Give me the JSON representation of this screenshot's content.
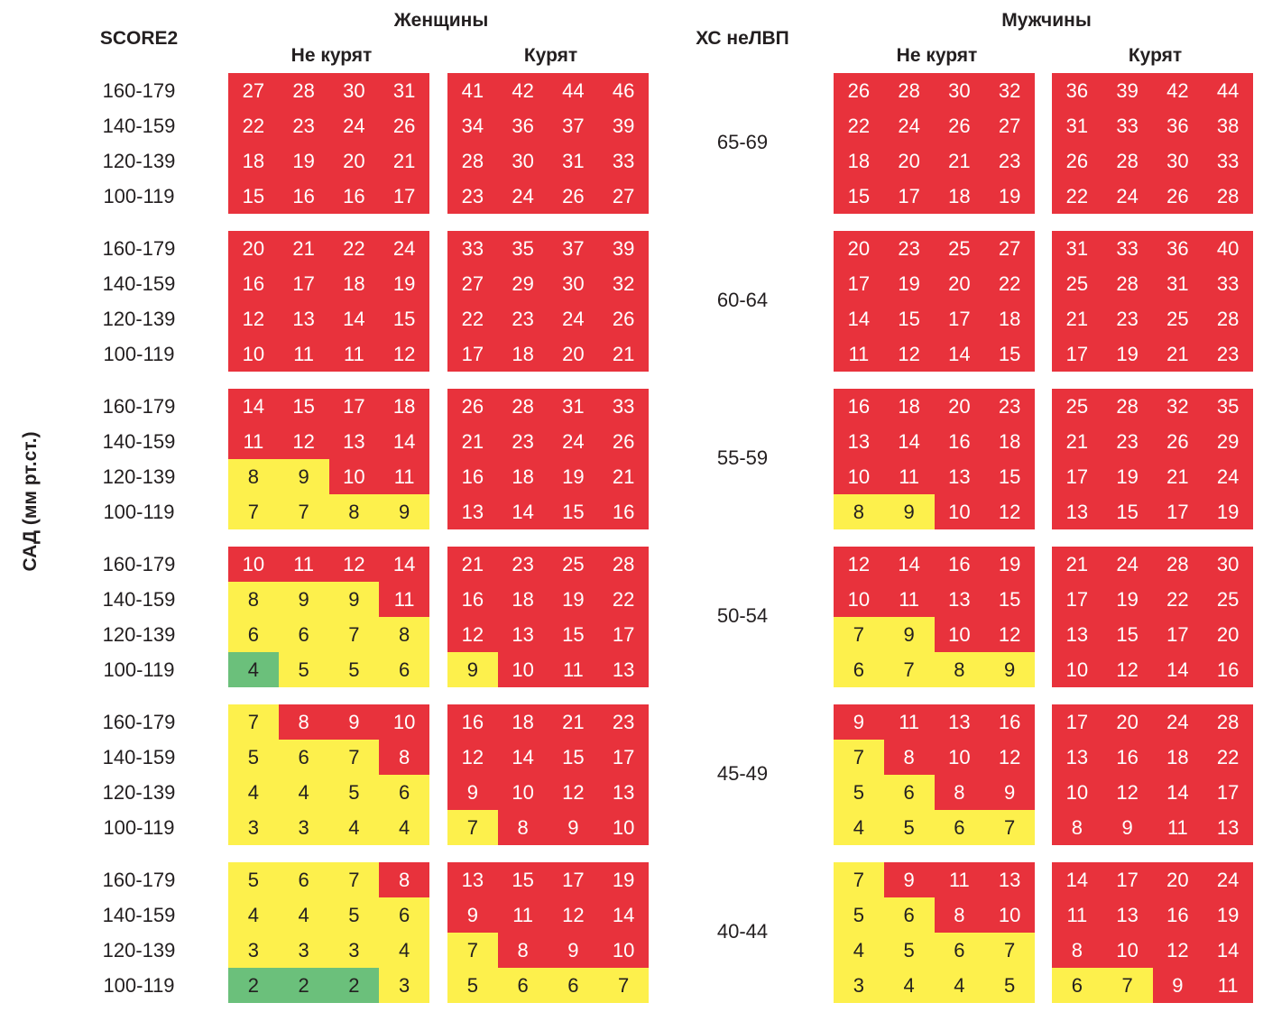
{
  "chart_data": {
    "type": "heatmap",
    "title": "SCORE2",
    "ylabel": "САД (мм рт.ст.)",
    "xlabel": "ХС неЛВП",
    "sex_labels": {
      "women": "Женщины",
      "men": "Мужчины"
    },
    "smoking_labels": {
      "non": "Не курят",
      "smoke": "Курят"
    },
    "sbp_categories": [
      "160-179",
      "140-159",
      "120-139",
      "100-119"
    ],
    "colors": {
      "r": "#e8323c",
      "y": "#fdf04c",
      "g": "#6bc07b"
    },
    "age_groups": [
      {
        "age": "65-69",
        "women_non": {
          "values": [
            [
              27,
              28,
              30,
              31
            ],
            [
              22,
              23,
              24,
              26
            ],
            [
              18,
              19,
              20,
              21
            ],
            [
              15,
              16,
              16,
              17
            ]
          ],
          "colors": [
            "rrrr",
            "rrrr",
            "rrrr",
            "rrrr"
          ]
        },
        "women_smoke": {
          "values": [
            [
              41,
              42,
              44,
              46
            ],
            [
              34,
              36,
              37,
              39
            ],
            [
              28,
              30,
              31,
              33
            ],
            [
              23,
              24,
              26,
              27
            ]
          ],
          "colors": [
            "rrrr",
            "rrrr",
            "rrrr",
            "rrrr"
          ]
        },
        "men_non": {
          "values": [
            [
              26,
              28,
              30,
              32
            ],
            [
              22,
              24,
              26,
              27
            ],
            [
              18,
              20,
              21,
              23
            ],
            [
              15,
              17,
              18,
              19
            ]
          ],
          "colors": [
            "rrrr",
            "rrrr",
            "rrrr",
            "rrrr"
          ]
        },
        "men_smoke": {
          "values": [
            [
              36,
              39,
              42,
              44
            ],
            [
              31,
              33,
              36,
              38
            ],
            [
              26,
              28,
              30,
              33
            ],
            [
              22,
              24,
              26,
              28
            ]
          ],
          "colors": [
            "rrrr",
            "rrrr",
            "rrrr",
            "rrrr"
          ]
        }
      },
      {
        "age": "60-64",
        "women_non": {
          "values": [
            [
              20,
              21,
              22,
              24
            ],
            [
              16,
              17,
              18,
              19
            ],
            [
              12,
              13,
              14,
              15
            ],
            [
              10,
              11,
              11,
              12
            ]
          ],
          "colors": [
            "rrrr",
            "rrrr",
            "rrrr",
            "rrrr"
          ]
        },
        "women_smoke": {
          "values": [
            [
              33,
              35,
              37,
              39
            ],
            [
              27,
              29,
              30,
              32
            ],
            [
              22,
              23,
              24,
              26
            ],
            [
              17,
              18,
              20,
              21
            ]
          ],
          "colors": [
            "rrrr",
            "rrrr",
            "rrrr",
            "rrrr"
          ]
        },
        "men_non": {
          "values": [
            [
              20,
              23,
              25,
              27
            ],
            [
              17,
              19,
              20,
              22
            ],
            [
              14,
              15,
              17,
              18
            ],
            [
              11,
              12,
              14,
              15
            ]
          ],
          "colors": [
            "rrrr",
            "rrrr",
            "rrrr",
            "rrrr"
          ]
        },
        "men_smoke": {
          "values": [
            [
              31,
              33,
              36,
              40
            ],
            [
              25,
              28,
              31,
              33
            ],
            [
              21,
              23,
              25,
              28
            ],
            [
              17,
              19,
              21,
              23
            ]
          ],
          "colors": [
            "rrrr",
            "rrrr",
            "rrrr",
            "rrrr"
          ]
        }
      },
      {
        "age": "55-59",
        "women_non": {
          "values": [
            [
              14,
              15,
              17,
              18
            ],
            [
              11,
              12,
              13,
              14
            ],
            [
              8,
              9,
              10,
              11
            ],
            [
              7,
              7,
              8,
              9
            ]
          ],
          "colors": [
            "rrrr",
            "rrrr",
            "yyrr",
            "yyyy"
          ]
        },
        "women_smoke": {
          "values": [
            [
              26,
              28,
              31,
              33
            ],
            [
              21,
              23,
              24,
              26
            ],
            [
              16,
              18,
              19,
              21
            ],
            [
              13,
              14,
              15,
              16
            ]
          ],
          "colors": [
            "rrrr",
            "rrrr",
            "rrrr",
            "rrrr"
          ]
        },
        "men_non": {
          "values": [
            [
              16,
              18,
              20,
              23
            ],
            [
              13,
              14,
              16,
              18
            ],
            [
              10,
              11,
              13,
              15
            ],
            [
              8,
              9,
              10,
              12
            ]
          ],
          "colors": [
            "rrrr",
            "rrrr",
            "rrrr",
            "yyrr"
          ]
        },
        "men_smoke": {
          "values": [
            [
              25,
              28,
              32,
              35
            ],
            [
              21,
              23,
              26,
              29
            ],
            [
              17,
              19,
              21,
              24
            ],
            [
              13,
              15,
              17,
              19
            ]
          ],
          "colors": [
            "rrrr",
            "rrrr",
            "rrrr",
            "rrrr"
          ]
        }
      },
      {
        "age": "50-54",
        "women_non": {
          "values": [
            [
              10,
              11,
              12,
              14
            ],
            [
              8,
              9,
              9,
              11
            ],
            [
              6,
              6,
              7,
              8
            ],
            [
              4,
              5,
              5,
              6
            ]
          ],
          "colors": [
            "rrrr",
            "yyyr",
            "yyyy",
            "gyyy"
          ]
        },
        "women_smoke": {
          "values": [
            [
              21,
              23,
              25,
              28
            ],
            [
              16,
              18,
              19,
              22
            ],
            [
              12,
              13,
              15,
              17
            ],
            [
              9,
              10,
              11,
              13
            ]
          ],
          "colors": [
            "rrrr",
            "rrrr",
            "rrrr",
            "yrrr"
          ]
        },
        "men_non": {
          "values": [
            [
              12,
              14,
              16,
              19
            ],
            [
              10,
              11,
              13,
              15
            ],
            [
              7,
              9,
              10,
              12
            ],
            [
              6,
              7,
              8,
              9
            ]
          ],
          "colors": [
            "rrrr",
            "rrrr",
            "yyrr",
            "yyyy"
          ]
        },
        "men_smoke": {
          "values": [
            [
              21,
              24,
              28,
              30
            ],
            [
              17,
              19,
              22,
              25
            ],
            [
              13,
              15,
              17,
              20
            ],
            [
              10,
              12,
              14,
              16
            ]
          ],
          "colors": [
            "rrrr",
            "rrrr",
            "rrrr",
            "rrrr"
          ]
        }
      },
      {
        "age": "45-49",
        "women_non": {
          "values": [
            [
              7,
              8,
              9,
              10
            ],
            [
              5,
              6,
              7,
              8
            ],
            [
              4,
              4,
              5,
              6
            ],
            [
              3,
              3,
              4,
              4
            ]
          ],
          "colors": [
            "yrrr",
            "yyyr",
            "yyyy",
            "yyyy"
          ]
        },
        "women_smoke": {
          "values": [
            [
              16,
              18,
              21,
              23
            ],
            [
              12,
              14,
              15,
              17
            ],
            [
              9,
              10,
              12,
              13
            ],
            [
              7,
              8,
              9,
              10
            ]
          ],
          "colors": [
            "rrrr",
            "rrrr",
            "rrrr",
            "yrrr"
          ]
        },
        "men_non": {
          "values": [
            [
              9,
              11,
              13,
              16
            ],
            [
              7,
              8,
              10,
              12
            ],
            [
              5,
              6,
              8,
              9
            ],
            [
              4,
              5,
              6,
              7
            ]
          ],
          "colors": [
            "rrrr",
            "yrrr",
            "yyrr",
            "yyyy"
          ]
        },
        "men_smoke": {
          "values": [
            [
              17,
              20,
              24,
              28
            ],
            [
              13,
              16,
              18,
              22
            ],
            [
              10,
              12,
              14,
              17
            ],
            [
              8,
              9,
              11,
              13
            ]
          ],
          "colors": [
            "rrrr",
            "rrrr",
            "rrrr",
            "rrrr"
          ]
        }
      },
      {
        "age": "40-44",
        "women_non": {
          "values": [
            [
              5,
              6,
              7,
              8
            ],
            [
              4,
              4,
              5,
              6
            ],
            [
              3,
              3,
              3,
              4
            ],
            [
              2,
              2,
              2,
              3
            ]
          ],
          "colors": [
            "yyyr",
            "yyyy",
            "yyyy",
            "gggy"
          ]
        },
        "women_smoke": {
          "values": [
            [
              13,
              15,
              17,
              19
            ],
            [
              9,
              11,
              12,
              14
            ],
            [
              7,
              8,
              9,
              10
            ],
            [
              5,
              6,
              6,
              7
            ]
          ],
          "colors": [
            "rrrr",
            "rrrr",
            "yrrr",
            "yyyy"
          ]
        },
        "men_non": {
          "values": [
            [
              7,
              9,
              11,
              13
            ],
            [
              5,
              6,
              8,
              10
            ],
            [
              4,
              5,
              6,
              7
            ],
            [
              3,
              4,
              4,
              5
            ]
          ],
          "colors": [
            "yrrr",
            "yyrr",
            "yyyy",
            "yyyy"
          ]
        },
        "men_smoke": {
          "values": [
            [
              14,
              17,
              20,
              24
            ],
            [
              11,
              13,
              16,
              19
            ],
            [
              8,
              10,
              12,
              14
            ],
            [
              6,
              7,
              9,
              11
            ]
          ],
          "colors": [
            "rrrr",
            "rrrr",
            "rrrr",
            "yyrr"
          ]
        }
      }
    ]
  }
}
